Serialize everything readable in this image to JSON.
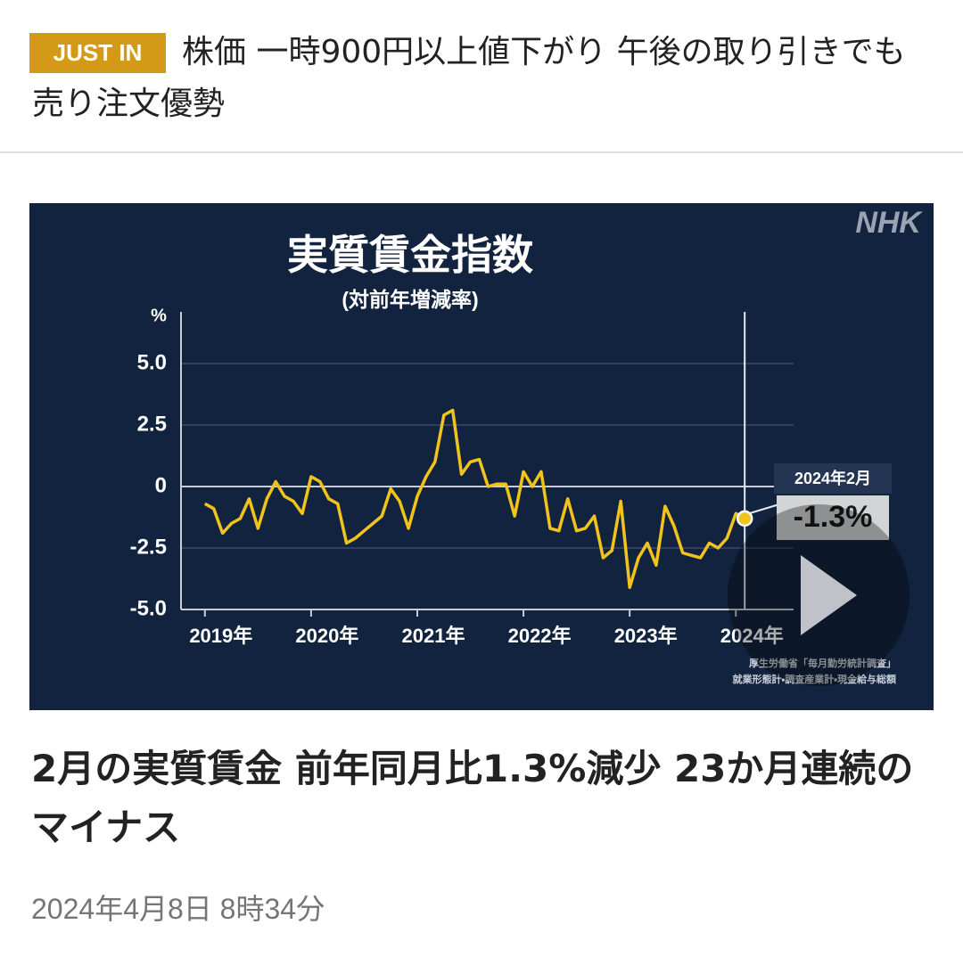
{
  "news_ticker": {
    "badge": "JUST IN",
    "headline": "株価 一時900円以上値下がり 午後の取り引きでも売り注文優勢"
  },
  "chart_data": {
    "type": "line",
    "brand": "NHK",
    "title": "実質賃金指数",
    "subtitle": "(対前年増減率)",
    "y_unit": "%",
    "series": [
      {
        "name": "実質賃金指数",
        "color": "#f2c31b",
        "values": [
          -0.7,
          -0.9,
          -1.9,
          -1.5,
          -1.3,
          -0.5,
          -1.7,
          -0.5,
          0.2,
          -0.4,
          -0.6,
          -1.1,
          0.4,
          0.2,
          -0.5,
          -0.7,
          -2.3,
          -2.1,
          -1.8,
          -1.5,
          -1.2,
          -0.1,
          -0.6,
          -1.7,
          -0.4,
          0.4,
          1.0,
          2.9,
          3.1,
          0.5,
          1.0,
          1.1,
          0.0,
          0.1,
          0.1,
          -1.2,
          0.6,
          0.0,
          0.6,
          -1.7,
          -1.8,
          -0.5,
          -1.8,
          -1.7,
          -1.2,
          -2.9,
          -2.6,
          -0.6,
          -4.1,
          -2.9,
          -2.3,
          -3.2,
          -0.8,
          -1.6,
          -2.7,
          -2.8,
          -2.9,
          -2.3,
          -2.5,
          -2.1,
          -1.1,
          -1.3
        ],
        "value_labels": [
          null,
          null,
          null,
          null,
          null,
          null,
          null,
          null,
          null,
          null,
          null,
          null,
          null,
          null,
          null,
          null,
          null,
          null,
          null,
          null,
          null,
          null,
          null,
          null,
          null,
          null,
          null,
          null,
          null,
          null,
          null,
          null,
          null,
          null,
          null,
          null,
          null,
          null,
          null,
          null,
          null,
          null,
          null,
          null,
          null,
          null,
          null,
          null,
          null,
          null,
          null,
          null,
          null,
          null,
          null,
          null,
          null,
          null,
          null,
          null,
          null,
          "-1.3%"
        ]
      }
    ],
    "callout_date": "2024年2月",
    "xlim": [
      -2.7,
      63.5
    ],
    "xticks": [
      {
        "value": 0,
        "label": "2019年"
      },
      {
        "value": 12,
        "label": "2020年"
      },
      {
        "value": 24,
        "label": "2021年"
      },
      {
        "value": 36,
        "label": "2022年"
      },
      {
        "value": 48,
        "label": "2023年"
      },
      {
        "value": 60,
        "label": "2024年"
      }
    ],
    "ylim": [
      -5,
      7.1
    ],
    "yticks": [
      {
        "value": -5,
        "label": "-5.0"
      },
      -2.5,
      0,
      2.5,
      {
        "value": 5,
        "label": "5.0"
      }
    ],
    "grid": true,
    "source": [
      "厚生労働省「毎月勤労統計調査」",
      "就業形態計・調査産業計・現金給与総額"
    ]
  },
  "article": {
    "headline": "2月の実質賃金 前年同月比1.3%減少 23か月連続のマイナス",
    "timestamp": "2024年4月8日 8時34分"
  }
}
